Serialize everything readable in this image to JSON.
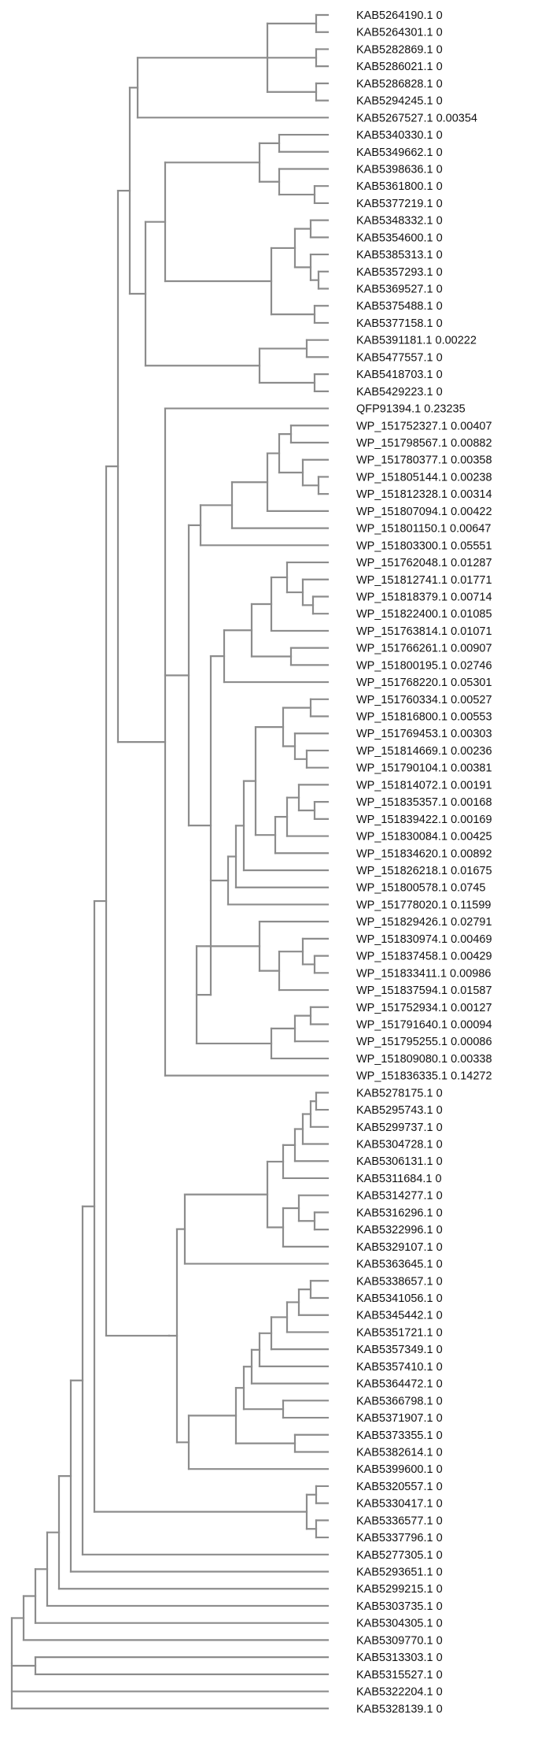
{
  "leaves": [
    "KAB5264190.1 0",
    "KAB5264301.1 0",
    "KAB5282869.1 0",
    "KAB5286021.1 0",
    "KAB5286828.1 0",
    "KAB5294245.1 0",
    "KAB5267527.1 0.00354",
    "KAB5340330.1 0",
    "KAB5349662.1 0",
    "KAB5398636.1 0",
    "KAB5361800.1 0",
    "KAB5377219.1 0",
    "KAB5348332.1 0",
    "KAB5354600.1 0",
    "KAB5385313.1 0",
    "KAB5357293.1 0",
    "KAB5369527.1 0",
    "KAB5375488.1 0",
    "KAB5377158.1 0",
    "KAB5391181.1 0.00222",
    "KAB5477557.1 0",
    "KAB5418703.1 0",
    "KAB5429223.1 0",
    "QFP91394.1 0.23235",
    "WP_151752327.1 0.00407",
    "WP_151798567.1 0.00882",
    "WP_151780377.1 0.00358",
    "WP_151805144.1 0.00238",
    "WP_151812328.1 0.00314",
    "WP_151807094.1 0.00422",
    "WP_151801150.1 0.00647",
    "WP_151803300.1 0.05551",
    "WP_151762048.1 0.01287",
    "WP_151812741.1 0.01771",
    "WP_151818379.1 0.00714",
    "WP_151822400.1 0.01085",
    "WP_151763814.1 0.01071",
    "WP_151766261.1 0.00907",
    "WP_151800195.1 0.02746",
    "WP_151768220.1 0.05301",
    "WP_151760334.1 0.00527",
    "WP_151816800.1 0.00553",
    "WP_151769453.1 0.00303",
    "WP_151814669.1 0.00236",
    "WP_151790104.1 0.00381",
    "WP_151814072.1 0.00191",
    "WP_151835357.1 0.00168",
    "WP_151839422.1 0.00169",
    "WP_151830084.1 0.00425",
    "WP_151834620.1 0.00892",
    "WP_151826218.1 0.01675",
    "WP_151800578.1 0.0745",
    "WP_151778020.1 0.11599",
    "WP_151829426.1 0.02791",
    "WP_151830974.1 0.00469",
    "WP_151837458.1 0.00429",
    "WP_151833411.1 0.00986",
    "WP_151837594.1 0.01587",
    "WP_151752934.1 0.00127",
    "WP_151791640.1 0.00094",
    "WP_151795255.1 0.00086",
    "WP_151809080.1 0.00338",
    "WP_151836335.1 0.14272",
    "KAB5278175.1 0",
    "KAB5295743.1 0",
    "KAB5299737.1 0",
    "KAB5304728.1 0",
    "KAB5306131.1 0",
    "KAB5311684.1 0",
    "KAB5314277.1 0",
    "KAB5316296.1 0",
    "KAB5322996.1 0",
    "KAB5329107.1 0",
    "KAB5363645.1 0",
    "KAB5338657.1 0",
    "KAB5341056.1 0",
    "KAB5345442.1 0",
    "KAB5351721.1 0",
    "KAB5357349.1 0",
    "KAB5357410.1 0",
    "KAB5364472.1 0",
    "KAB5366798.1 0",
    "KAB5371907.1 0",
    "KAB5373355.1 0",
    "KAB5382614.1 0",
    "KAB5399600.1 0",
    "KAB5320557.1 0",
    "KAB5330417.1 0",
    "KAB5336577.1 0",
    "KAB5337796.1 0",
    "KAB5277305.1 0",
    "KAB5293651.1 0",
    "KAB5299215.1 0",
    "KAB5303735.1 0",
    "KAB5304305.1 0",
    "KAB5309770.1 0",
    "KAB5313303.1 0",
    "KAB5315527.1 0",
    "KAB5322204.1 0",
    "KAB5328139.1 0"
  ],
  "colors": {
    "branch": "#8c8c8c",
    "label": "#111111",
    "background": "#ffffff"
  }
}
